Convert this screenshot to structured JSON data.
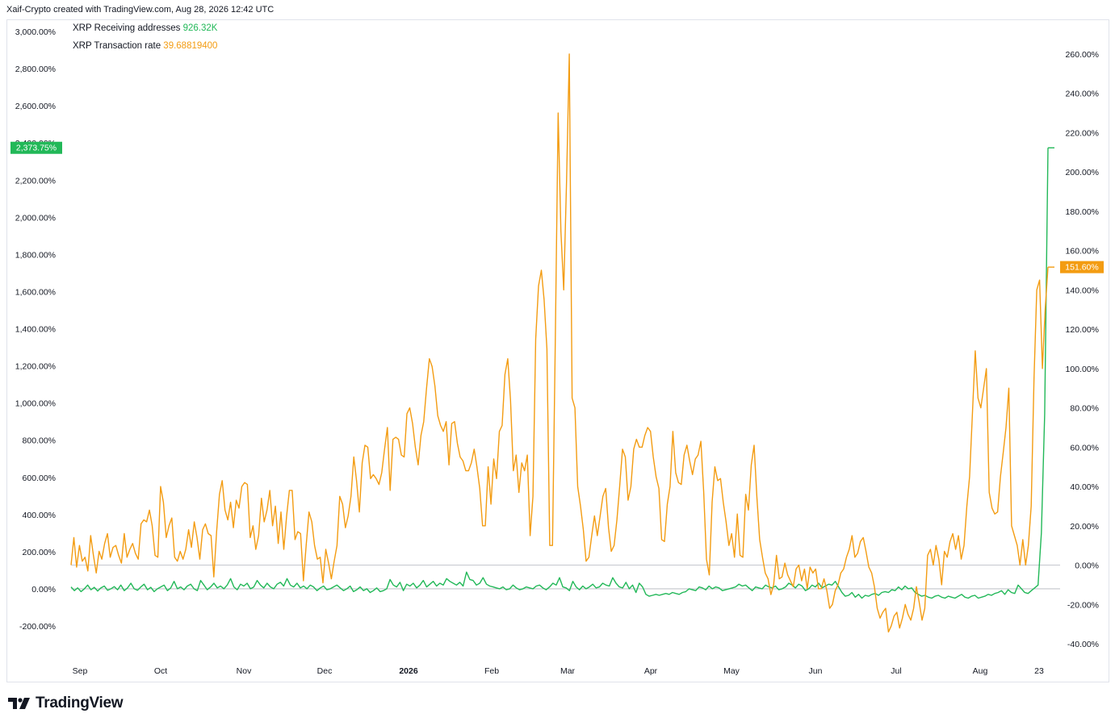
{
  "header": {
    "attribution": "Xaif-Crypto created with TradingView.com, Aug 28, 2026 12:42 UTC"
  },
  "legend": [
    {
      "name": "XRP Receiving addresses",
      "value": "926.32K",
      "color": "#22b858"
    },
    {
      "name": "XRP Transaction rate",
      "value": "39.68819400",
      "color": "#f39c12"
    }
  ],
  "badges": {
    "left": "2,373.75%",
    "right": "151.60%"
  },
  "brand": {
    "name": "TradingView"
  },
  "colors": {
    "receiving": "#22b858",
    "transaction": "#f39c12",
    "axis_text": "#131722",
    "zero_line": "#b2b5be"
  },
  "chart_data": {
    "type": "line",
    "x_labels": [
      "Sep",
      "Oct",
      "Nov",
      "Dec",
      "2026",
      "Feb",
      "Mar",
      "Apr",
      "May",
      "Jun",
      "Jul",
      "Aug",
      "23"
    ],
    "left_axis": {
      "ticks": [
        "3,000.00%",
        "2,800.00%",
        "2,600.00%",
        "2,400.00%",
        "2,200.00%",
        "2,000.00%",
        "1,800.00%",
        "1,600.00%",
        "1,400.00%",
        "1,200.00%",
        "1,000.00%",
        "800.00%",
        "600.00%",
        "400.00%",
        "200.00%",
        "0.00%",
        "-200.00%"
      ],
      "range": [
        -200,
        3000
      ]
    },
    "right_axis": {
      "ticks": [
        "260.00%",
        "240.00%",
        "220.00%",
        "200.00%",
        "180.00%",
        "160.00%",
        "140.00%",
        "120.00%",
        "100.00%",
        "80.00%",
        "60.00%",
        "40.00%",
        "20.00%",
        "0.00%",
        "-20.00%",
        "-40.00%"
      ],
      "range": [
        -40,
        260
      ]
    },
    "series": [
      {
        "name": "XRP Receiving addresses",
        "axis": "left",
        "color": "#22b858",
        "x_range": [
          "2025-08-28",
          "2026-08-28"
        ],
        "values": [
          10,
          -10,
          5,
          -15,
          0,
          20,
          -5,
          8,
          -12,
          5,
          15,
          -8,
          0,
          12,
          -5,
          20,
          -10,
          5,
          30,
          0,
          -8,
          10,
          25,
          -5,
          8,
          -15,
          0,
          10,
          20,
          -10,
          5,
          40,
          0,
          10,
          -5,
          15,
          25,
          0,
          -10,
          45,
          20,
          -5,
          10,
          30,
          5,
          15,
          0,
          20,
          55,
          10,
          -5,
          25,
          15,
          30,
          0,
          10,
          45,
          20,
          5,
          30,
          10,
          0,
          25,
          35,
          15,
          55,
          20,
          10,
          30,
          5,
          15,
          0,
          20,
          10,
          -10,
          5,
          15,
          -5,
          0,
          10,
          20,
          5,
          -10,
          0,
          15,
          -15,
          -5,
          10,
          -10,
          0,
          -20,
          -10,
          5,
          -15,
          -10,
          0,
          50,
          20,
          10,
          35,
          -10,
          25,
          15,
          30,
          5,
          20,
          45,
          10,
          25,
          40,
          15,
          30,
          20,
          55,
          40,
          30,
          20,
          35,
          15,
          90,
          50,
          45,
          20,
          30,
          60,
          25,
          15,
          10,
          5,
          0,
          10,
          -5,
          0,
          20,
          5,
          -5,
          0,
          10,
          5,
          0,
          15,
          20,
          5,
          -5,
          10,
          30,
          20,
          60,
          10,
          5,
          -10,
          40,
          10,
          -5,
          15,
          0,
          10,
          25,
          5,
          10,
          30,
          20,
          15,
          60,
          30,
          10,
          5,
          35,
          0,
          20,
          -20,
          30,
          10,
          -30,
          -40,
          -35,
          -30,
          -35,
          -30,
          -25,
          -30,
          -20,
          -25,
          -30,
          -20,
          -15,
          0,
          -5,
          -10,
          10,
          5,
          -5,
          15,
          0,
          10,
          5,
          -10,
          -5,
          0,
          5,
          10,
          25,
          15,
          20,
          5,
          -10,
          10,
          5,
          0,
          20,
          10,
          5,
          15,
          -5,
          0,
          10,
          30,
          20,
          5,
          25,
          15,
          -10,
          0,
          20,
          10,
          30,
          5,
          15,
          25,
          20,
          40,
          10,
          -20,
          -40,
          -35,
          -20,
          -45,
          -30,
          -50,
          -35,
          -40,
          -30,
          -25,
          -35,
          -20,
          -15,
          -20,
          -5,
          -10,
          10,
          -5,
          15,
          0,
          5,
          -20,
          -30,
          -40,
          -35,
          -45,
          -50,
          -40,
          -35,
          -45,
          -50,
          -40,
          -45,
          -50,
          -40,
          -30,
          -45,
          -50,
          -40,
          -35,
          -50,
          -45,
          -40,
          -30,
          -35,
          -25,
          -20,
          -10,
          -30,
          -5,
          -20,
          -25,
          20,
          0,
          -20,
          -25,
          -10,
          5,
          20,
          300,
          940,
          2373.75
        ]
      },
      {
        "name": "XRP Transaction rate",
        "axis": "right",
        "color": "#f39c12",
        "x_range": [
          "2025-08-28",
          "2026-08-28"
        ],
        "values": [
          0,
          14,
          -1,
          10,
          2,
          4,
          -3,
          15,
          5,
          -4,
          7,
          3,
          11,
          16,
          4,
          9,
          10,
          5,
          1,
          16,
          4,
          8,
          11,
          6,
          3,
          21,
          23,
          22,
          28,
          20,
          5,
          4,
          40,
          32,
          14,
          20,
          24,
          4,
          2,
          7,
          3,
          8,
          18,
          9,
          22,
          14,
          3,
          18,
          21,
          16,
          15,
          -6,
          17,
          36,
          43,
          28,
          23,
          32,
          19,
          33,
          29,
          40,
          42,
          41,
          14,
          20,
          8,
          15,
          34,
          22,
          28,
          38,
          20,
          30,
          11,
          27,
          8,
          25,
          38,
          38,
          13,
          17,
          16,
          -8,
          10,
          27,
          22,
          10,
          3,
          4,
          -9,
          8,
          1,
          -7,
          2,
          10,
          35,
          31,
          19,
          25,
          35,
          55,
          43,
          27,
          52,
          61,
          60,
          44,
          46,
          44,
          41,
          47,
          59,
          70,
          38,
          64,
          65,
          64,
          56,
          55,
          77,
          80,
          72,
          60,
          51,
          66,
          73,
          90,
          105,
          101,
          91,
          76,
          71,
          68,
          73,
          51,
          72,
          73,
          62,
          55,
          53,
          48,
          48,
          52,
          59,
          50,
          39,
          20,
          20,
          50,
          31,
          54,
          44,
          68,
          71,
          97,
          105,
          84,
          48,
          56,
          37,
          52,
          48,
          56,
          15,
          35,
          115,
          142,
          150,
          135,
          110,
          10,
          10,
          115,
          230,
          170,
          140,
          195,
          260,
          85,
          80,
          40,
          30,
          18,
          2,
          4,
          15,
          25,
          15,
          25,
          35,
          39,
          19,
          7,
          10,
          23,
          40,
          59,
          55,
          33,
          40,
          59,
          64,
          60,
          60,
          66,
          70,
          68,
          55,
          45,
          39,
          13,
          12,
          31,
          40,
          68,
          47,
          42,
          41,
          56,
          61,
          53,
          46,
          54,
          56,
          63,
          37,
          3,
          -5,
          32,
          50,
          43,
          44,
          32,
          22,
          10,
          16,
          4,
          26,
          5,
          4,
          36,
          28,
          51,
          61,
          35,
          13,
          4,
          -4,
          -7,
          -15,
          -10,
          5,
          -7,
          -6,
          1,
          -5,
          -8,
          -11,
          -2,
          0,
          -8,
          -2,
          -12,
          -1,
          -4,
          -2,
          -12,
          -12,
          -7,
          -13,
          -22,
          -20,
          -13,
          -10,
          -4,
          -2,
          4,
          8,
          15,
          4,
          6,
          12,
          14,
          7,
          -1,
          -4,
          -11,
          -22,
          -27,
          -24,
          -22,
          -34,
          -31,
          -26,
          -24,
          -32,
          -27,
          -20,
          -25,
          -28,
          -22,
          -11,
          -19,
          -28,
          -22,
          5,
          8,
          0,
          10,
          3,
          -10,
          7,
          4,
          12,
          16,
          8,
          15,
          3,
          10,
          30,
          45,
          77,
          109,
          85,
          80,
          90,
          100,
          37,
          29,
          26,
          27,
          45,
          57,
          70,
          90,
          20,
          15,
          10,
          0,
          13,
          0,
          10,
          30,
          95,
          140,
          145,
          100,
          130,
          151.6
        ]
      }
    ],
    "last_value_badges": {
      "left": 2373.75,
      "right": 151.6
    },
    "grid": false,
    "legend_position": "top-left"
  }
}
